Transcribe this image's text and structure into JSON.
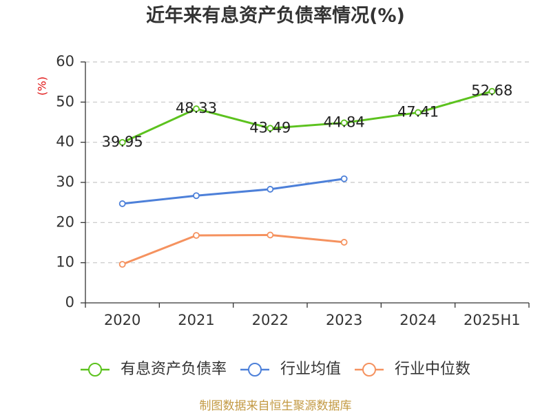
{
  "source_note": "制图数据来自恒生聚源数据库",
  "chart_data": {
    "type": "line",
    "title": "近年来有息资产负债率情况(%)",
    "xlabel": "",
    "ylabel": "(%)",
    "categories": [
      "2020",
      "2021",
      "2022",
      "2023",
      "2024",
      "2025H1"
    ],
    "ylim": [
      0,
      60
    ],
    "yticks": [
      0,
      10,
      20,
      30,
      40,
      50,
      60
    ],
    "grid": true,
    "legend": "bottom-center",
    "series": [
      {
        "name": "有息资产负债率",
        "color": "#5cc21e",
        "show_labels": true,
        "values": [
          39.95,
          48.33,
          43.49,
          44.84,
          47.41,
          52.68
        ]
      },
      {
        "name": "行业均值",
        "color": "#4d80d9",
        "show_labels": false,
        "values": [
          24.7,
          26.7,
          28.3,
          30.9,
          null,
          null
        ]
      },
      {
        "name": "行业中位数",
        "color": "#f5925f",
        "show_labels": false,
        "values": [
          9.6,
          16.8,
          16.9,
          15.1,
          null,
          null
        ]
      }
    ]
  }
}
